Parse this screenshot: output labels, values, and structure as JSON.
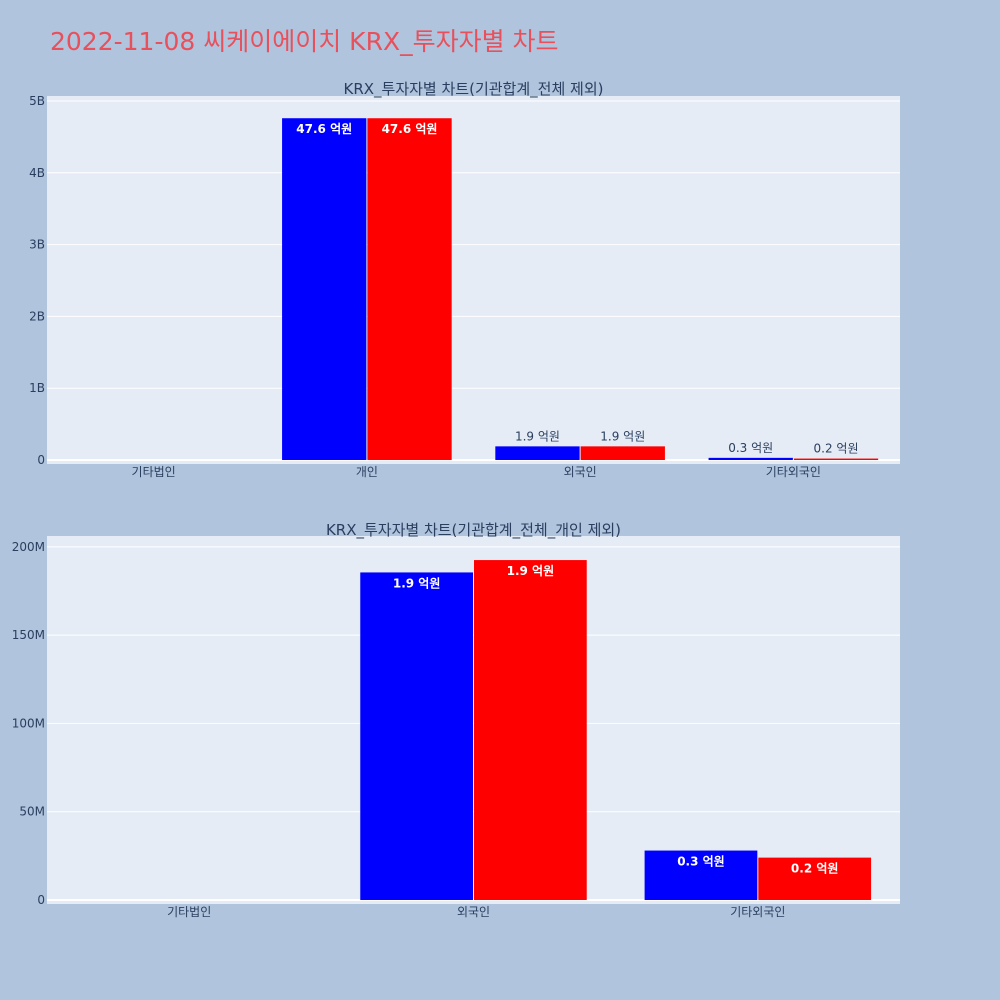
{
  "title": "2022-11-08 씨케이에이치 KRX_투자자별 차트",
  "colors": {
    "background": "#b0c4de",
    "plot_bg": "#e5ecf6",
    "title": "#e8505b",
    "series_a": "#0000ff",
    "series_b": "#ff0000",
    "text": "#2a3f5f"
  },
  "chart_data": [
    {
      "type": "bar",
      "title": "KRX_투자자별 차트(기관합계_전체 제외)",
      "categories": [
        "기타법인",
        "개인",
        "외국인",
        "기타외국인"
      ],
      "ylim": [
        0,
        5000000000
      ],
      "yticks": [
        0,
        1000000000,
        2000000000,
        3000000000,
        4000000000,
        5000000000
      ],
      "ytick_labels": [
        "0",
        "1B",
        "2B",
        "3B",
        "4B",
        "5B"
      ],
      "grid": true,
      "series": [
        {
          "values": [
            0,
            4760000000,
            190000000,
            30000000
          ],
          "labels": [
            "",
            "47.6 억원",
            "1.9 억원",
            "0.3 억원"
          ]
        },
        {
          "values": [
            0,
            4760000000,
            190000000,
            20000000
          ],
          "labels": [
            "",
            "47.6 억원",
            "1.9 억원",
            "0.2 억원"
          ]
        }
      ]
    },
    {
      "type": "bar",
      "title": "KRX_투자자별 차트(기관합계_전체_개인 제외)",
      "categories": [
        "기타법인",
        "외국인",
        "기타외국인"
      ],
      "ylim": [
        0,
        205000000
      ],
      "yticks": [
        0,
        50000000,
        100000000,
        150000000,
        200000000
      ],
      "ytick_labels": [
        "0",
        "50M",
        "100M",
        "150M",
        "200M"
      ],
      "grid": true,
      "series": [
        {
          "values": [
            0,
            185500000,
            28000000
          ],
          "labels": [
            "",
            "1.9 억원",
            "0.3 억원"
          ]
        },
        {
          "values": [
            0,
            192500000,
            24000000
          ],
          "labels": [
            "",
            "1.9 억원",
            "0.2 억원"
          ]
        }
      ]
    }
  ]
}
